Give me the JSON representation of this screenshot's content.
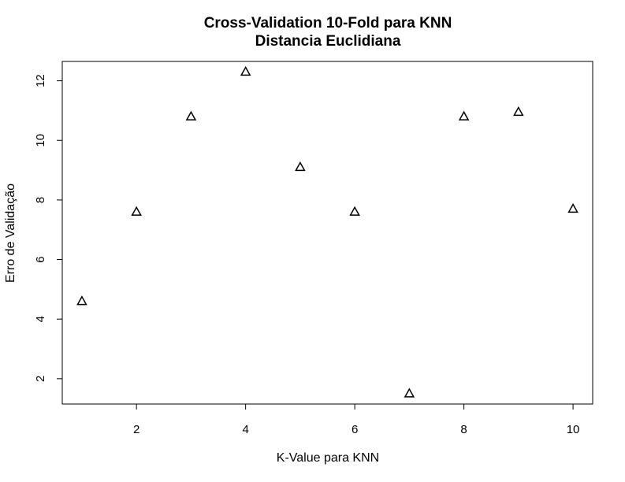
{
  "chart_data": {
    "type": "scatter",
    "title": "Cross-Validation 10-Fold para KNN",
    "subtitle": "Distancia Euclidiana",
    "xlabel": "K-Value para KNN",
    "ylabel": "Erro de Validação",
    "x": [
      1,
      2,
      3,
      4,
      5,
      6,
      7,
      8,
      9,
      10
    ],
    "y": [
      4.6,
      7.6,
      10.8,
      12.3,
      9.1,
      7.6,
      1.5,
      10.8,
      10.95,
      7.7
    ],
    "xlim": [
      0.64,
      10.36
    ],
    "ylim": [
      1.15,
      12.65
    ],
    "xticks": [
      2,
      4,
      6,
      8,
      10
    ],
    "yticks": [
      2,
      4,
      6,
      8,
      10,
      12
    ],
    "marker": "triangle",
    "grid": false,
    "legend": "none",
    "colors": {
      "marker": "#000000",
      "axis": "#000000",
      "background": "#ffffff"
    }
  }
}
